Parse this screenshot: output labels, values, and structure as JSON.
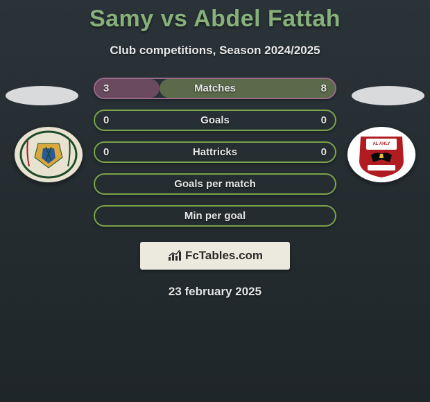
{
  "title": "Samy vs Abdel Fattah",
  "subtitle": "Club competitions, Season 2024/2025",
  "date": "23 february 2025",
  "footer_brand": "FcTables.com",
  "colors": {
    "title": "#88b07a",
    "bg_top": "#2a3338",
    "bg_bottom": "#1f2629",
    "oval": "#d9dadb",
    "text": "#e6e6e6",
    "badge_bg": "#eceade"
  },
  "crest_left": {
    "bg": "#e8e2d0",
    "ring": "#1c4a2a",
    "inner": "#d9a93d"
  },
  "crest_right": {
    "bg": "#ffffff",
    "main": "#b01c22",
    "accent": "#0a0a0a"
  },
  "stats": [
    {
      "label": "Matches",
      "left_val": "3",
      "right_val": "8",
      "border_color": "#9a6a8a",
      "left_fill_color": "#6a4a5e",
      "right_fill_color": "#5a6a4a",
      "left_fill_pct": 27,
      "right_fill_pct": 73
    },
    {
      "label": "Goals",
      "left_val": "0",
      "right_val": "0",
      "border_color": "#7aa24a",
      "left_fill_color": null,
      "right_fill_color": null,
      "left_fill_pct": 0,
      "right_fill_pct": 0
    },
    {
      "label": "Hattricks",
      "left_val": "0",
      "right_val": "0",
      "border_color": "#7aa24a",
      "left_fill_color": null,
      "right_fill_color": null,
      "left_fill_pct": 0,
      "right_fill_pct": 0
    },
    {
      "label": "Goals per match",
      "left_val": "",
      "right_val": "",
      "border_color": "#7aa24a",
      "left_fill_color": null,
      "right_fill_color": null,
      "left_fill_pct": 0,
      "right_fill_pct": 0
    },
    {
      "label": "Min per goal",
      "left_val": "",
      "right_val": "",
      "border_color": "#7aa24a",
      "left_fill_color": null,
      "right_fill_color": null,
      "left_fill_pct": 0,
      "right_fill_pct": 0
    }
  ]
}
